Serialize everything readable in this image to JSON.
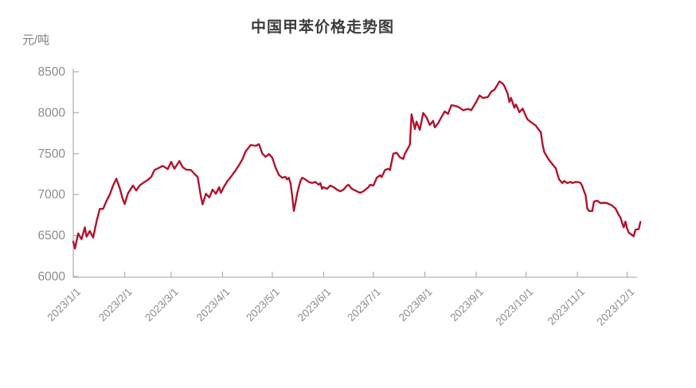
{
  "chart": {
    "title": "中国甲苯价格走势图",
    "unit_label": "元/吨"
  },
  "chart_data": {
    "type": "line",
    "title": "中国甲苯价格走势图",
    "xlabel": "",
    "ylabel": "元/吨",
    "series_name": "中国甲苯价格",
    "line_color": "#b2142e",
    "axis_color": "#b3b3b3",
    "tick_label_color": "#8c8c8c",
    "grid": false,
    "legend": "none",
    "ylim": [
      6000,
      8500
    ],
    "yticks": [
      6000,
      6500,
      7000,
      7500,
      8000,
      8500
    ],
    "xtick_labels": [
      "2023/1/1",
      "2023/2/1",
      "2023/3/1",
      "2023/4/1",
      "2023/5/1",
      "2023/6/1",
      "2023/7/1",
      "2023/8/1",
      "2023/9/1",
      "2023/10/1",
      "2023/11/1",
      "2023/12/1"
    ],
    "xtick_days": [
      0,
      31,
      59,
      90,
      120,
      151,
      181,
      212,
      243,
      273,
      304,
      334
    ],
    "x_axis_end_day": 340,
    "x_last_data_day": 342,
    "points": [
      [
        0,
        6425
      ],
      [
        1,
        6340
      ],
      [
        3,
        6525
      ],
      [
        5,
        6455
      ],
      [
        7,
        6600
      ],
      [
        8,
        6485
      ],
      [
        10,
        6555
      ],
      [
        12,
        6475
      ],
      [
        14,
        6670
      ],
      [
        16,
        6825
      ],
      [
        18,
        6825
      ],
      [
        20,
        6920
      ],
      [
        22,
        7000
      ],
      [
        24,
        7110
      ],
      [
        26,
        7195
      ],
      [
        28,
        7080
      ],
      [
        30,
        6935
      ],
      [
        31,
        6885
      ],
      [
        33,
        7015
      ],
      [
        36,
        7110
      ],
      [
        38,
        7050
      ],
      [
        40,
        7110
      ],
      [
        42,
        7140
      ],
      [
        45,
        7180
      ],
      [
        47,
        7215
      ],
      [
        49,
        7300
      ],
      [
        52,
        7330
      ],
      [
        54,
        7350
      ],
      [
        57,
        7310
      ],
      [
        59,
        7400
      ],
      [
        61,
        7315
      ],
      [
        64,
        7410
      ],
      [
        66,
        7335
      ],
      [
        68,
        7305
      ],
      [
        71,
        7300
      ],
      [
        73,
        7255
      ],
      [
        75,
        7215
      ],
      [
        77,
        6975
      ],
      [
        78,
        6880
      ],
      [
        80,
        7010
      ],
      [
        82,
        6965
      ],
      [
        84,
        7060
      ],
      [
        86,
        7010
      ],
      [
        88,
        7090
      ],
      [
        89,
        7020
      ],
      [
        91,
        7100
      ],
      [
        93,
        7165
      ],
      [
        95,
        7215
      ],
      [
        98,
        7300
      ],
      [
        100,
        7360
      ],
      [
        102,
        7430
      ],
      [
        104,
        7530
      ],
      [
        107,
        7605
      ],
      [
        110,
        7595
      ],
      [
        112,
        7615
      ],
      [
        114,
        7500
      ],
      [
        116,
        7460
      ],
      [
        118,
        7495
      ],
      [
        120,
        7450
      ],
      [
        122,
        7330
      ],
      [
        124,
        7240
      ],
      [
        126,
        7205
      ],
      [
        128,
        7215
      ],
      [
        129,
        7185
      ],
      [
        130,
        7205
      ],
      [
        131,
        7140
      ],
      [
        132,
        6990
      ],
      [
        133,
        6800
      ],
      [
        134,
        6895
      ],
      [
        135,
        7010
      ],
      [
        136,
        7090
      ],
      [
        137,
        7165
      ],
      [
        138,
        7205
      ],
      [
        140,
        7185
      ],
      [
        142,
        7155
      ],
      [
        144,
        7140
      ],
      [
        146,
        7155
      ],
      [
        148,
        7120
      ],
      [
        149,
        7140
      ],
      [
        150,
        7070
      ],
      [
        151,
        7090
      ],
      [
        153,
        7070
      ],
      [
        155,
        7110
      ],
      [
        157,
        7090
      ],
      [
        159,
        7060
      ],
      [
        161,
        7040
      ],
      [
        163,
        7060
      ],
      [
        165,
        7110
      ],
      [
        166,
        7120
      ],
      [
        168,
        7070
      ],
      [
        171,
        7040
      ],
      [
        173,
        7020
      ],
      [
        175,
        7040
      ],
      [
        178,
        7090
      ],
      [
        179,
        7120
      ],
      [
        181,
        7110
      ],
      [
        183,
        7205
      ],
      [
        185,
        7235
      ],
      [
        186,
        7215
      ],
      [
        188,
        7300
      ],
      [
        190,
        7315
      ],
      [
        191,
        7300
      ],
      [
        193,
        7500
      ],
      [
        195,
        7510
      ],
      [
        197,
        7455
      ],
      [
        199,
        7435
      ],
      [
        200,
        7500
      ],
      [
        202,
        7570
      ],
      [
        203,
        7610
      ],
      [
        204,
        7980
      ],
      [
        206,
        7800
      ],
      [
        207,
        7890
      ],
      [
        209,
        7790
      ],
      [
        211,
        7995
      ],
      [
        213,
        7945
      ],
      [
        215,
        7850
      ],
      [
        217,
        7900
      ],
      [
        218,
        7820
      ],
      [
        220,
        7870
      ],
      [
        222,
        7945
      ],
      [
        224,
        8015
      ],
      [
        226,
        7985
      ],
      [
        228,
        8090
      ],
      [
        231,
        8080
      ],
      [
        233,
        8060
      ],
      [
        235,
        8030
      ],
      [
        238,
        8045
      ],
      [
        240,
        8030
      ],
      [
        243,
        8130
      ],
      [
        245,
        8210
      ],
      [
        247,
        8180
      ],
      [
        250,
        8190
      ],
      [
        252,
        8255
      ],
      [
        254,
        8280
      ],
      [
        257,
        8380
      ],
      [
        259,
        8355
      ],
      [
        260,
        8325
      ],
      [
        262,
        8230
      ],
      [
        263,
        8130
      ],
      [
        264,
        8180
      ],
      [
        266,
        8060
      ],
      [
        267,
        8100
      ],
      [
        269,
        8005
      ],
      [
        271,
        8050
      ],
      [
        273,
        7955
      ],
      [
        274,
        7915
      ],
      [
        276,
        7885
      ],
      [
        279,
        7840
      ],
      [
        280,
        7810
      ],
      [
        282,
        7760
      ],
      [
        283,
        7615
      ],
      [
        284,
        7520
      ],
      [
        286,
        7450
      ],
      [
        287,
        7420
      ],
      [
        289,
        7370
      ],
      [
        291,
        7320
      ],
      [
        292,
        7250
      ],
      [
        293,
        7185
      ],
      [
        295,
        7140
      ],
      [
        296,
        7165
      ],
      [
        298,
        7140
      ],
      [
        300,
        7155
      ],
      [
        301,
        7140
      ],
      [
        303,
        7155
      ],
      [
        305,
        7150
      ],
      [
        306,
        7140
      ],
      [
        307,
        7100
      ],
      [
        308,
        7040
      ],
      [
        309,
        6990
      ],
      [
        310,
        6830
      ],
      [
        311,
        6800
      ],
      [
        313,
        6800
      ],
      [
        314,
        6915
      ],
      [
        316,
        6925
      ],
      [
        318,
        6895
      ],
      [
        320,
        6900
      ],
      [
        322,
        6895
      ],
      [
        325,
        6865
      ],
      [
        327,
        6830
      ],
      [
        329,
        6750
      ],
      [
        330,
        6720
      ],
      [
        331,
        6650
      ],
      [
        332,
        6600
      ],
      [
        333,
        6670
      ],
      [
        334,
        6585
      ],
      [
        335,
        6535
      ],
      [
        337,
        6505
      ],
      [
        338,
        6490
      ],
      [
        339,
        6570
      ],
      [
        341,
        6580
      ],
      [
        342,
        6665
      ]
    ]
  }
}
